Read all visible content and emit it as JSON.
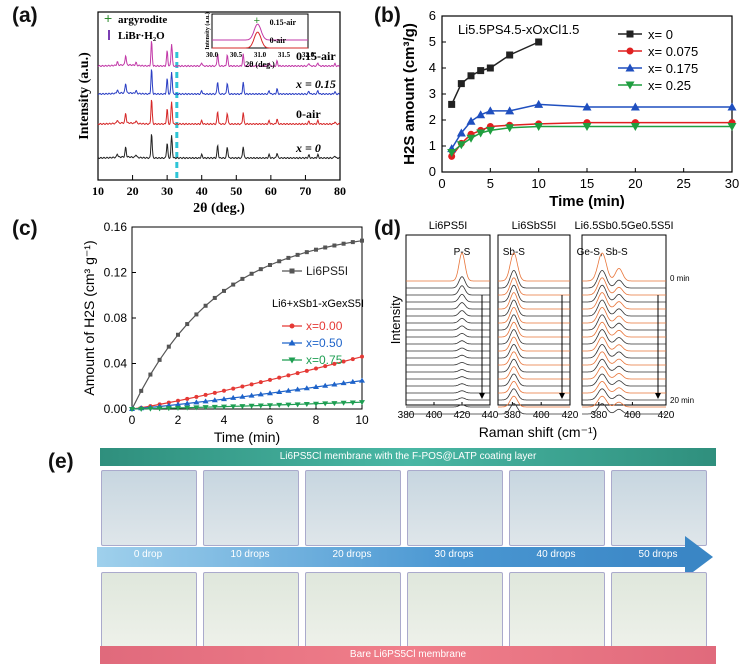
{
  "panel_labels": {
    "a": "(a)",
    "b": "(b)",
    "c": "(c)",
    "d": "(d)",
    "e": "(e)"
  },
  "chart_data": [
    {
      "id": "a",
      "type": "line",
      "xlabel": "2θ (deg.)",
      "ylabel": "Intensity (a.u.)",
      "xlim": [
        10,
        80
      ],
      "xticks": [
        10,
        20,
        30,
        40,
        50,
        60,
        70,
        80
      ],
      "legend": [
        {
          "name": "argyrodite",
          "color": "#2e8b2e",
          "marker": "+"
        },
        {
          "name": "LiBr·H₂O",
          "color": "#7a3fb3",
          "marker": "|"
        }
      ],
      "series": [
        {
          "name": "x = 0",
          "color": "#222222",
          "label": "x = 0",
          "offset": 0
        },
        {
          "name": "0-air",
          "color": "#d62828",
          "label": "0-air",
          "offset": 1
        },
        {
          "name": "x = 0.15",
          "color": "#2b3fc4",
          "label": "x = 0.15",
          "offset": 2
        },
        {
          "name": "0.15-air",
          "color": "#c23aa8",
          "label": "0.15-air",
          "offset": 3
        }
      ],
      "peaks": [
        {
          "x": 15.6,
          "h": 0.12
        },
        {
          "x": 18.0,
          "h": 0.35
        },
        {
          "x": 21.0,
          "h": 0.1
        },
        {
          "x": 25.5,
          "h": 0.9
        },
        {
          "x": 30.0,
          "h": 0.55
        },
        {
          "x": 31.3,
          "h": 0.8
        },
        {
          "x": 40.0,
          "h": 0.12
        },
        {
          "x": 44.6,
          "h": 0.45
        },
        {
          "x": 47.4,
          "h": 0.4
        },
        {
          "x": 52.0,
          "h": 0.42
        },
        {
          "x": 59.5,
          "h": 0.12
        },
        {
          "x": 61.8,
          "h": 0.18
        },
        {
          "x": 71.0,
          "h": 0.1
        },
        {
          "x": 73.6,
          "h": 0.12
        },
        {
          "x": 78.5,
          "h": 0.08
        }
      ],
      "inset": {
        "xlim": [
          30.0,
          32.0
        ],
        "xticks": [
          "30.0",
          "30.5",
          "31.0",
          "31.5",
          "32.0"
        ],
        "xlabel": "2θ (deg.)",
        "ylabel": "Intensity (a.u.)",
        "series_labels": [
          "0.15-air",
          "0-air"
        ]
      }
    },
    {
      "id": "b",
      "type": "line",
      "title": "Li5.5PS4.5-xOxCl1.5",
      "xlabel": "Time (min)",
      "ylabel": "H2S amount (cm³/g)",
      "xlim": [
        0,
        30
      ],
      "ylim": [
        0,
        6
      ],
      "xticks": [
        0,
        5,
        10,
        15,
        20,
        25,
        30
      ],
      "yticks": [
        0,
        1,
        2,
        3,
        4,
        5,
        6
      ],
      "series": [
        {
          "name": "x= 0",
          "color": "#222222",
          "marker": "square",
          "x": [
            1,
            2,
            3,
            4,
            5,
            7,
            10
          ],
          "y": [
            2.6,
            3.4,
            3.7,
            3.9,
            4.0,
            4.5,
            5.0
          ]
        },
        {
          "name": "x= 0.075",
          "color": "#e02020",
          "marker": "circle",
          "x": [
            1,
            2,
            3,
            4,
            5,
            7,
            10,
            15,
            20,
            30
          ],
          "y": [
            0.6,
            1.1,
            1.45,
            1.6,
            1.75,
            1.8,
            1.85,
            1.9,
            1.9,
            1.9
          ]
        },
        {
          "name": "x= 0.175",
          "color": "#1f4fbf",
          "marker": "triangle-up",
          "x": [
            1,
            2,
            3,
            4,
            5,
            7,
            10,
            15,
            20,
            30
          ],
          "y": [
            0.9,
            1.5,
            1.95,
            2.2,
            2.35,
            2.35,
            2.6,
            2.5,
            2.5,
            2.5
          ]
        },
        {
          "name": "x= 0.25",
          "color": "#1f9e3f",
          "marker": "triangle-down",
          "x": [
            1,
            2,
            3,
            4,
            5,
            7,
            10,
            15,
            20,
            30
          ],
          "y": [
            0.75,
            1.05,
            1.3,
            1.5,
            1.6,
            1.7,
            1.75,
            1.75,
            1.75,
            1.75
          ]
        }
      ]
    },
    {
      "id": "c",
      "type": "line",
      "xlabel": "Time (min)",
      "ylabel": "Amount of H2S (cm³ g⁻¹)",
      "xlim": [
        0,
        10
      ],
      "ylim": [
        0,
        0.16
      ],
      "xticks": [
        0,
        2,
        4,
        6,
        8,
        10
      ],
      "yticks": [
        "0.00",
        "0.04",
        "0.08",
        "0.12",
        "0.16"
      ],
      "legend_title": "Li6+xSb1-xGexS5I",
      "series": [
        {
          "name": "Li6PS5I",
          "color": "#555555",
          "marker": "square",
          "kind": "sat",
          "end": 0.148
        },
        {
          "name": "x=0.00",
          "color": "#e53935",
          "marker": "circle",
          "kind": "lin",
          "end": 0.046
        },
        {
          "name": "x=0.50",
          "color": "#1e63c9",
          "marker": "triangle-up",
          "kind": "lin",
          "end": 0.025
        },
        {
          "name": "x=0.75",
          "color": "#1e9e52",
          "marker": "triangle-down",
          "kind": "lin",
          "end": 0.006
        }
      ]
    },
    {
      "id": "d",
      "type": "line",
      "xlabel": "Raman shift (cm⁻¹)",
      "ylabel": "Intensity",
      "time_labels": [
        "0 min",
        "20 min"
      ],
      "subpanels": [
        {
          "title": "Li6PS5I",
          "peak_label": "P-S",
          "xticks": [
            380,
            400,
            420,
            440
          ],
          "xlim": [
            380,
            440
          ],
          "peak": 420
        },
        {
          "title": "Li6SbS5I",
          "peak_label": "Sb-S",
          "xticks": [
            380,
            400,
            420
          ],
          "xlim": [
            370,
            420
          ],
          "peak": 381
        },
        {
          "title": "Li6.5Sb0.5Ge0.5S5I",
          "peak_label": "Ge-S, Sb-S",
          "xticks": [
            380,
            400,
            420
          ],
          "xlim": [
            370,
            420
          ],
          "peak": 382
        }
      ]
    }
  ],
  "panel_e": {
    "top_banner": "Li6PS5Cl membrane with the F-POS@LATP coating layer",
    "bottom_banner": "Bare Li6PS5Cl membrane",
    "drops": [
      "0 drop",
      "10 drops",
      "20 drops",
      "30 drops",
      "40 drops",
      "50 drops"
    ]
  }
}
